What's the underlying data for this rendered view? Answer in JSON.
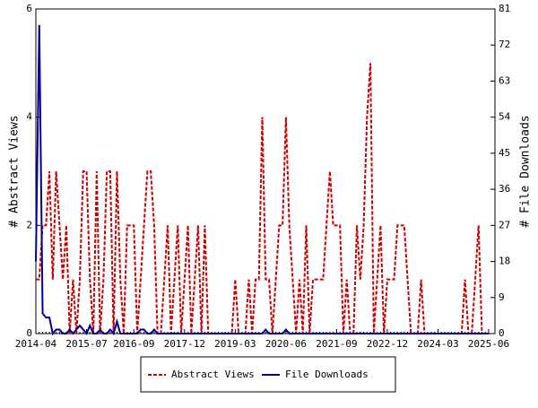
{
  "chart_data": {
    "type": "line",
    "y_label": "# Abstract Views",
    "y2_label": "# File Downloads",
    "categories": [
      "2014-04",
      null,
      null,
      null,
      null,
      null,
      null,
      null,
      null,
      null,
      null,
      null,
      null,
      null,
      null,
      "2015-07",
      null,
      null,
      null,
      null,
      null,
      null,
      null,
      null,
      null,
      null,
      null,
      null,
      null,
      "2016-09",
      null,
      null,
      null,
      null,
      null,
      null,
      null,
      null,
      null,
      null,
      null,
      null,
      null,
      null,
      "2017-12",
      null,
      null,
      null,
      null,
      null,
      null,
      null,
      null,
      null,
      null,
      null,
      null,
      null,
      null,
      "2019-03",
      null,
      null,
      null,
      null,
      null,
      null,
      null,
      null,
      null,
      null,
      null,
      null,
      null,
      null,
      "2020-06",
      null,
      null,
      null,
      null,
      null,
      null,
      null,
      null,
      null,
      null,
      null,
      null,
      null,
      null,
      "2021-09",
      null,
      null,
      null,
      null,
      null,
      null,
      null,
      null,
      null,
      null,
      null,
      null,
      null,
      null,
      "2022-12",
      null,
      null,
      null,
      null,
      null,
      null,
      null,
      null,
      null,
      null,
      null,
      null,
      null,
      null,
      "2024-03",
      null,
      null,
      null,
      null,
      null,
      null,
      null,
      null,
      null,
      null,
      null,
      null,
      null,
      null,
      "2025-06"
    ],
    "series": [
      {
        "name": "Abstract Views",
        "color": "#cc0000",
        "dash": true,
        "values": [
          1,
          1,
          2,
          2,
          3,
          1,
          3,
          2,
          1,
          2,
          0,
          1,
          0,
          1,
          3,
          3,
          1,
          0,
          3,
          0,
          1,
          3,
          3,
          0,
          3,
          1,
          0,
          2,
          2,
          2,
          0,
          1,
          2,
          3,
          3,
          2,
          0,
          0,
          1,
          2,
          0,
          1,
          2,
          0,
          1,
          2,
          0,
          1,
          2,
          0,
          2,
          0,
          0,
          0,
          0,
          0,
          0,
          0,
          0,
          1,
          0,
          0,
          0,
          1,
          0,
          1,
          1,
          4,
          1,
          1,
          0,
          1,
          2,
          2,
          4,
          2,
          1,
          0,
          1,
          0,
          2,
          0,
          1,
          1,
          1,
          1,
          2,
          3,
          2,
          2,
          2,
          0,
          1,
          0,
          0,
          2,
          1,
          2,
          4,
          5,
          0,
          1,
          2,
          0,
          1,
          1,
          1,
          2,
          2,
          2,
          1,
          0,
          0,
          0,
          1,
          0,
          0,
          0,
          0,
          0,
          0,
          0,
          0,
          0,
          0,
          0,
          0,
          1,
          0,
          0,
          1,
          2,
          0,
          0,
          0
        ]
      },
      {
        "name": "File Downloads",
        "color": "#000099",
        "dash": false,
        "axis": "y2",
        "values": [
          18,
          77,
          5,
          4,
          4,
          0,
          1,
          1,
          0,
          0,
          1,
          0,
          1,
          2,
          1,
          0,
          2,
          0,
          0,
          1,
          0,
          0,
          1,
          0,
          3,
          0,
          0,
          0,
          0,
          0,
          0,
          1,
          1,
          0,
          0,
          1,
          0,
          0,
          0,
          0,
          0,
          0,
          0,
          0,
          0,
          0,
          0,
          0,
          0,
          0,
          0,
          0,
          0,
          0,
          0,
          0,
          0,
          0,
          0,
          0,
          0,
          0,
          0,
          0,
          0,
          0,
          0,
          0,
          1,
          0,
          0,
          0,
          0,
          0,
          1,
          0,
          0,
          0,
          0,
          0,
          0,
          0,
          0,
          0,
          0,
          0,
          0,
          0,
          0,
          0,
          0,
          0,
          0,
          0,
          0,
          0,
          0,
          0,
          0,
          0,
          0,
          0,
          0,
          0,
          0,
          0,
          0,
          0,
          0,
          0,
          0,
          0,
          0,
          0,
          0,
          0,
          0,
          0,
          0,
          0,
          0,
          0,
          0,
          0,
          0,
          0,
          0,
          0,
          0,
          0,
          0,
          0,
          0,
          0,
          0
        ]
      }
    ],
    "ylim": [
      0,
      6
    ],
    "yticks": [
      0,
      2,
      4,
      6
    ],
    "y2lim": [
      0,
      81
    ],
    "y2ticks": [
      0,
      9,
      18,
      27,
      36,
      45,
      54,
      63,
      72,
      81
    ],
    "legend": "bottom"
  }
}
